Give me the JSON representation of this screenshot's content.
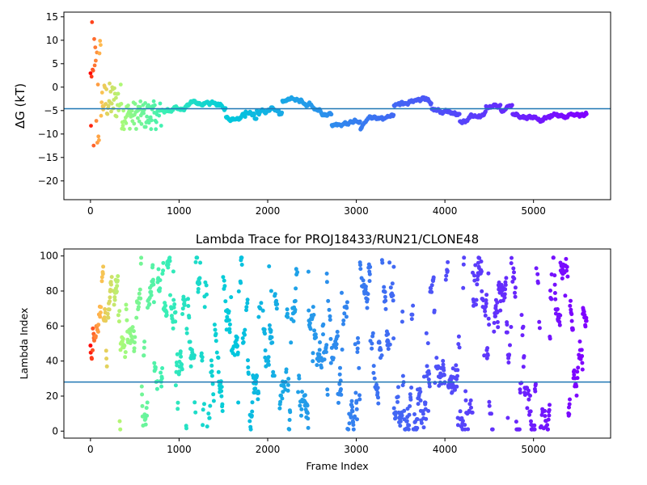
{
  "chart_data": [
    {
      "type": "scatter",
      "title": "",
      "xlabel": "",
      "ylabel": "ΔG (kT)",
      "xlim": [
        -300,
        5870
      ],
      "ylim": [
        -24,
        16
      ],
      "xticks": [
        0,
        1000,
        2000,
        3000,
        4000,
        5000
      ],
      "yticks": [
        15,
        10,
        5,
        0,
        -5,
        -10,
        -15,
        -20
      ],
      "hline": -4.6,
      "grid": false,
      "x_range": [
        0,
        5600
      ],
      "color_scale": "rainbow (red at start, violet at end)"
    },
    {
      "type": "scatter",
      "title": "Lambda Trace for PROJ18433/RUN21/CLONE48",
      "xlabel": "Frame Index",
      "ylabel": "Lambda Index",
      "xlim": [
        -300,
        5870
      ],
      "ylim": [
        -4,
        104
      ],
      "xticks": [
        0,
        1000,
        2000,
        3000,
        4000,
        5000
      ],
      "yticks": [
        100,
        80,
        60,
        40,
        20,
        0
      ],
      "hline": 28,
      "grid": false,
      "x_range": [
        0,
        5600
      ],
      "y_range": [
        1,
        99
      ],
      "color_scale": "rainbow (red at start, violet at end)"
    }
  ],
  "colors": {
    "hline": "#1f77b4",
    "axis": "#000000"
  }
}
